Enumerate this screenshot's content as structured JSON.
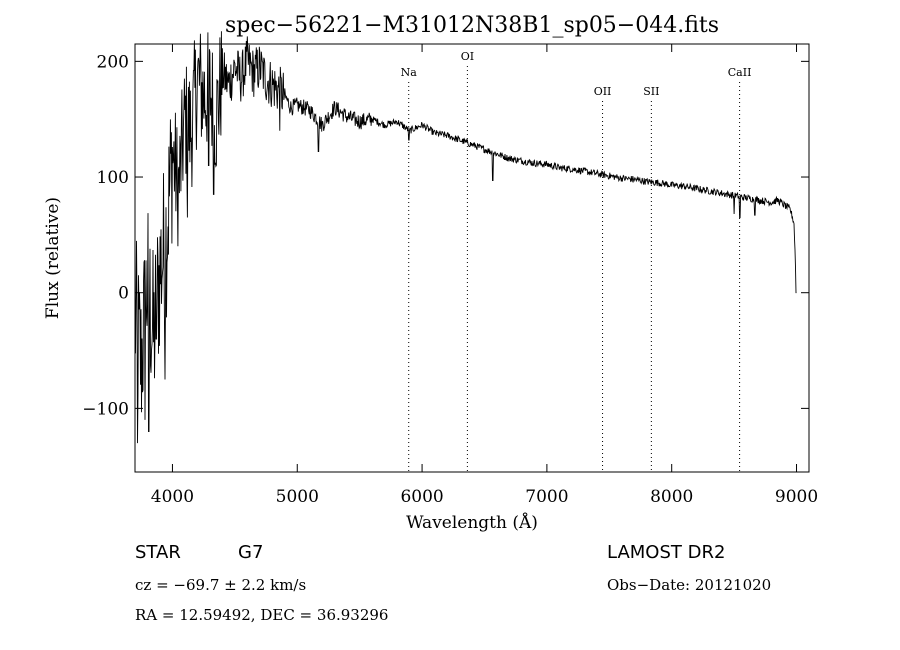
{
  "chart_data": {
    "type": "line",
    "title": "spec−56221−M31012N38B1_sp05−044.fits",
    "xlabel": "Wavelength (Å)",
    "ylabel": "Flux (relative)",
    "xlim": [
      3700,
      9100
    ],
    "ylim": [
      -155,
      215
    ],
    "xticks": [
      4000,
      5000,
      6000,
      7000,
      8000,
      9000
    ],
    "yticks": [
      -100,
      0,
      100,
      200
    ],
    "ytick_labels": [
      "−100",
      "0",
      "100",
      "200"
    ],
    "grid": false,
    "line_color": "#000000",
    "series": [
      {
        "x": [
          3700,
          3750,
          3800,
          3850,
          3900,
          3950,
          4000,
          4050,
          4100,
          4150,
          4200,
          4250,
          4300,
          4350,
          4400,
          4450,
          4500,
          4550,
          4600,
          4650,
          4700,
          4750,
          4800,
          4850,
          4900,
          4950,
          5000,
          5100,
          5200,
          5300,
          5400,
          5500,
          5600,
          5700,
          5800,
          5900,
          6000,
          6100,
          6200,
          6300,
          6400,
          6500,
          6600,
          6700,
          6800,
          6900,
          7000,
          7100,
          7200,
          7300,
          7400,
          7500,
          7600,
          7700,
          7800,
          7900,
          8000,
          8100,
          8200,
          8300,
          8400,
          8500,
          8600,
          8700,
          8800,
          8850,
          8900,
          8950,
          8980,
          9000
        ],
        "y": [
          -20,
          -60,
          10,
          -40,
          20,
          50,
          120,
          90,
          150,
          140,
          185,
          170,
          175,
          150,
          190,
          180,
          195,
          185,
          200,
          190,
          195,
          185,
          180,
          175,
          170,
          160,
          162,
          158,
          145,
          160,
          152,
          148,
          150,
          145,
          148,
          140,
          145,
          138,
          136,
          132,
          128,
          124,
          120,
          116,
          114,
          112,
          111,
          108,
          107,
          105,
          103,
          101,
          99,
          98,
          96,
          95,
          93,
          92,
          90,
          88,
          86,
          84,
          82,
          80,
          78,
          80,
          76,
          72,
          60,
          0
        ]
      }
    ],
    "dips": [
      {
        "x": 3720,
        "y": -130
      },
      {
        "x": 3780,
        "y": -110
      },
      {
        "x": 3810,
        "y": -120
      },
      {
        "x": 3870,
        "y": -40
      },
      {
        "x": 3940,
        "y": -75
      },
      {
        "x": 4040,
        "y": 80
      },
      {
        "x": 4120,
        "y": 65
      },
      {
        "x": 4290,
        "y": 110
      },
      {
        "x": 4330,
        "y": 85
      },
      {
        "x": 4860,
        "y": 140
      },
      {
        "x": 5170,
        "y": 122
      },
      {
        "x": 5895,
        "y": 132
      },
      {
        "x": 6565,
        "y": 97
      },
      {
        "x": 8500,
        "y": 68
      },
      {
        "x": 8545,
        "y": 65
      },
      {
        "x": 8665,
        "y": 67
      }
    ],
    "line_markers": [
      {
        "label": "Na",
        "x": 5893
      },
      {
        "label": "OI",
        "x": 6363
      },
      {
        "label": "OII",
        "x": 7446
      },
      {
        "label": "SII",
        "x": 7837
      },
      {
        "label": "CaII",
        "x": 8544
      }
    ]
  },
  "footer": {
    "object_class": "STAR",
    "subclass": "G7",
    "survey": "LAMOST DR2",
    "cz": "cz = −69.7 ± 2.2 km/s",
    "obs_date": "Obs−Date: 20121020",
    "coords": "RA =  12.59492, DEC =  36.93296"
  }
}
